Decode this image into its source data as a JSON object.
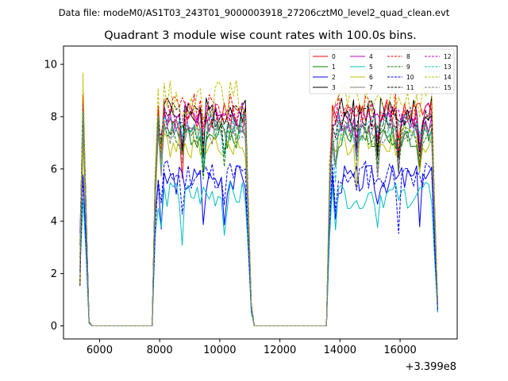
{
  "figure": {
    "suptitle": "Data file: modeM0/AS1T03_243T01_9000003918_27206cztM0_level2_quad_clean.evt"
  },
  "chart_data": {
    "type": "line",
    "title": "Quadrant 3 module wise count rates with 100.0s bins.",
    "xlabel": "",
    "ylabel": "",
    "x_offset_label": "+3.399e8",
    "xlim": [
      4800,
      17900
    ],
    "ylim": [
      -0.5,
      10.7
    ],
    "xticks": [
      6000,
      8000,
      10000,
      12000,
      14000,
      16000
    ],
    "xtick_labels": [
      "6000",
      "8000",
      "10000",
      "12000",
      "14000",
      "16000"
    ],
    "yticks": [
      0,
      2,
      4,
      6,
      8,
      10
    ],
    "ytick_labels": [
      "0",
      "2",
      "4",
      "6",
      "8",
      "10"
    ],
    "grid": false,
    "legend_position": "top-right",
    "legend_columns": 4,
    "series": [
      {
        "name": "0",
        "color": "#ff0000",
        "dash": "solid",
        "level": 8.0,
        "amp": 0.45,
        "seed": 1
      },
      {
        "name": "1",
        "color": "#008000",
        "dash": "solid",
        "level": 7.3,
        "amp": 0.4,
        "seed": 2
      },
      {
        "name": "2",
        "color": "#0000ff",
        "dash": "solid",
        "level": 5.6,
        "amp": 0.45,
        "seed": 3
      },
      {
        "name": "3",
        "color": "#000000",
        "dash": "solid",
        "level": 8.2,
        "amp": 0.45,
        "seed": 4
      },
      {
        "name": "4",
        "color": "#bf00bf",
        "dash": "solid",
        "level": 7.8,
        "amp": 0.4,
        "seed": 5
      },
      {
        "name": "5",
        "color": "#00bfbf",
        "dash": "solid",
        "level": 5.0,
        "amp": 0.4,
        "seed": 6
      },
      {
        "name": "6",
        "color": "#bfbf00",
        "dash": "solid",
        "level": 7.0,
        "amp": 0.5,
        "seed": 7
      },
      {
        "name": "7",
        "color": "#808080",
        "dash": "solid",
        "level": 7.5,
        "amp": 0.35,
        "seed": 8
      },
      {
        "name": "8",
        "color": "#ff0000",
        "dash": "dashed",
        "level": 8.3,
        "amp": 0.45,
        "seed": 9
      },
      {
        "name": "9",
        "color": "#008000",
        "dash": "dashed",
        "level": 7.4,
        "amp": 0.4,
        "seed": 10
      },
      {
        "name": "10",
        "color": "#0000ff",
        "dash": "dashed",
        "level": 5.8,
        "amp": 0.45,
        "seed": 11
      },
      {
        "name": "11",
        "color": "#000000",
        "dash": "dashed",
        "level": 8.0,
        "amp": 0.4,
        "seed": 12
      },
      {
        "name": "12",
        "color": "#bf00bf",
        "dash": "dashed",
        "level": 8.0,
        "amp": 0.45,
        "seed": 13
      },
      {
        "name": "13",
        "color": "#00bfbf",
        "dash": "dashed",
        "level": 7.6,
        "amp": 0.4,
        "seed": 14
      },
      {
        "name": "14",
        "color": "#bfbf00",
        "dash": "dashed",
        "level": 8.7,
        "amp": 0.55,
        "seed": 15
      },
      {
        "name": "15",
        "color": "#808080",
        "dash": "dashed",
        "level": 7.4,
        "amp": 0.4,
        "seed": 16
      }
    ],
    "segments": [
      {
        "x_start": 5350,
        "x_end": 5650,
        "step": 100,
        "profile": [
          0.18,
          1.05,
          0.55,
          0.02
        ]
      },
      {
        "x_start": 5650,
        "x_end": 7750,
        "step": 100,
        "zero": true
      },
      {
        "x_start": 7750,
        "x_end": 11050,
        "step": 100,
        "profile": "plateau"
      },
      {
        "x_start": 11050,
        "x_end": 13550,
        "step": 100,
        "zero": true
      },
      {
        "x_start": 13550,
        "x_end": 17250,
        "step": 100,
        "profile": "plateau"
      }
    ]
  }
}
